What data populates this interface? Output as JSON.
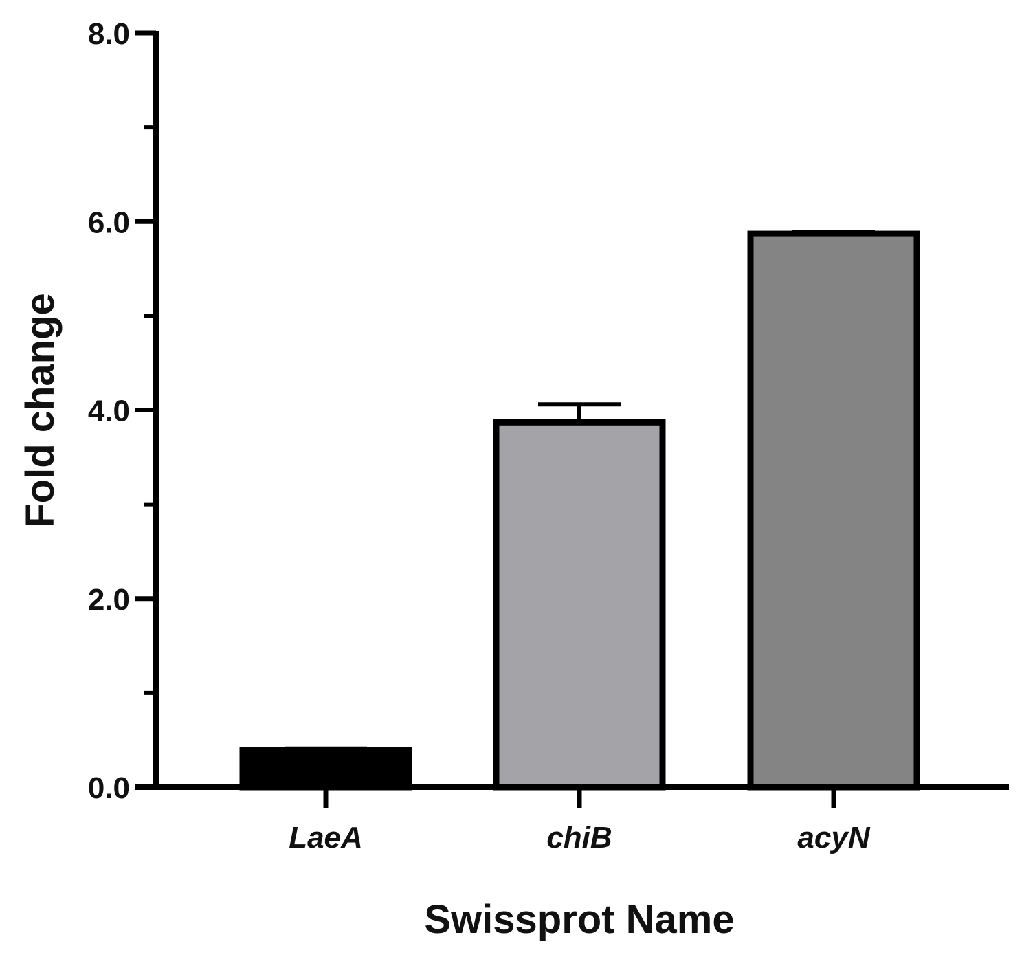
{
  "chart_data": {
    "type": "bar",
    "categories": [
      "LaeA",
      "chiB",
      "acyN"
    ],
    "values": [
      0.39,
      3.87,
      5.87
    ],
    "error_upper": [
      0.41,
      4.06,
      5.89
    ],
    "bar_colors": [
      "#000000",
      "#a4a4a8",
      "#848484"
    ],
    "title": "",
    "xlabel": "Swissprot Name",
    "ylabel": "Fold change",
    "ylim": [
      0,
      8.0
    ],
    "y_ticks": [
      {
        "value": 0,
        "label": "0.0"
      },
      {
        "value": 2,
        "label": "2.0"
      },
      {
        "value": 4,
        "label": "4.0"
      },
      {
        "value": 6,
        "label": "6.0"
      },
      {
        "value": 8,
        "label": "8.0"
      }
    ],
    "y_minor_ticks": [
      1,
      3,
      5,
      7
    ],
    "grid": false,
    "legend": "none"
  }
}
